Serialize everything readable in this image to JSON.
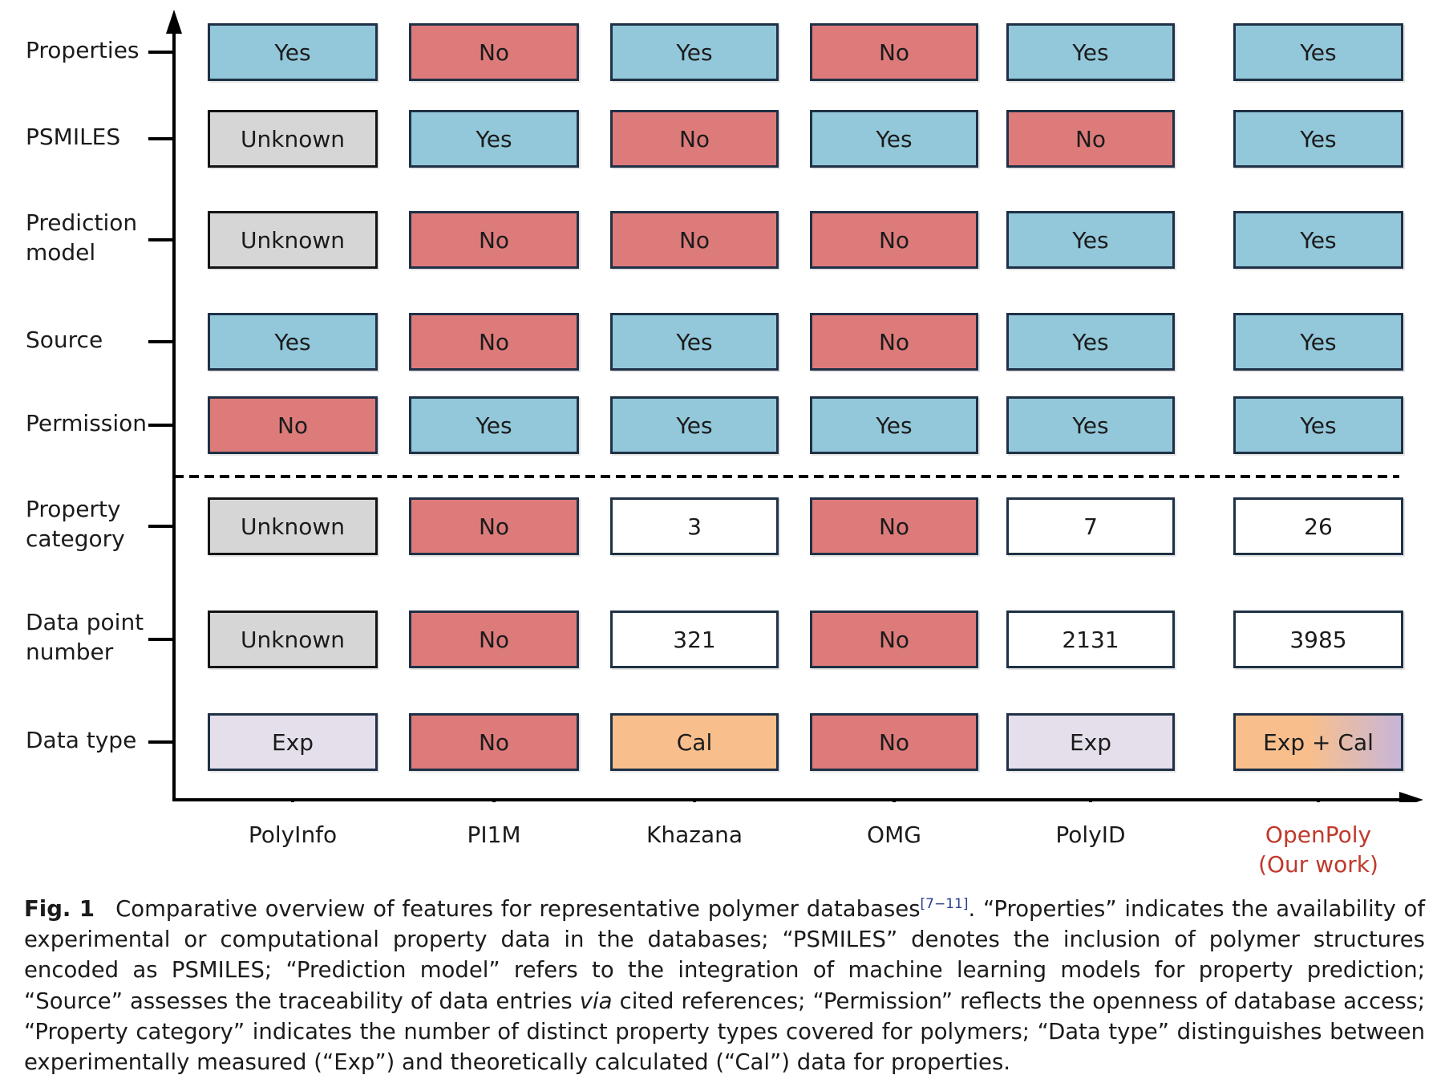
{
  "colors": {
    "yes": "#92c8da",
    "no": "#dd7b7b",
    "unknown": "#d6d6d6",
    "number": "#ffffff",
    "exp": "#e5dfeb",
    "cal": "#f8bf8d",
    "exp_cal_from": "#f8bf8d",
    "exp_cal_to": "#c7b6d8",
    "axis": "#000000",
    "highlight_label": "#c0392b"
  },
  "rows": [
    {
      "label": [
        "Properties"
      ],
      "cells": [
        {
          "text": "Yes",
          "kind": "yes"
        },
        {
          "text": "No",
          "kind": "no"
        },
        {
          "text": "Yes",
          "kind": "yes"
        },
        {
          "text": "No",
          "kind": "no"
        },
        {
          "text": "Yes",
          "kind": "yes"
        },
        {
          "text": "Yes",
          "kind": "yes"
        }
      ]
    },
    {
      "label": [
        "PSMILES"
      ],
      "cells": [
        {
          "text": "Unknown",
          "kind": "unknown"
        },
        {
          "text": "Yes",
          "kind": "yes"
        },
        {
          "text": "No",
          "kind": "no"
        },
        {
          "text": "Yes",
          "kind": "yes"
        },
        {
          "text": "No",
          "kind": "no"
        },
        {
          "text": "Yes",
          "kind": "yes"
        }
      ]
    },
    {
      "label": [
        "Prediction",
        "model"
      ],
      "cells": [
        {
          "text": "Unknown",
          "kind": "unknown"
        },
        {
          "text": "No",
          "kind": "no"
        },
        {
          "text": "No",
          "kind": "no"
        },
        {
          "text": "No",
          "kind": "no"
        },
        {
          "text": "Yes",
          "kind": "yes"
        },
        {
          "text": "Yes",
          "kind": "yes"
        }
      ]
    },
    {
      "label": [
        "Source"
      ],
      "cells": [
        {
          "text": "Yes",
          "kind": "yes"
        },
        {
          "text": "No",
          "kind": "no"
        },
        {
          "text": "Yes",
          "kind": "yes"
        },
        {
          "text": "No",
          "kind": "no"
        },
        {
          "text": "Yes",
          "kind": "yes"
        },
        {
          "text": "Yes",
          "kind": "yes"
        }
      ]
    },
    {
      "label": [
        "Permission"
      ],
      "cells": [
        {
          "text": "No",
          "kind": "no"
        },
        {
          "text": "Yes",
          "kind": "yes"
        },
        {
          "text": "Yes",
          "kind": "yes"
        },
        {
          "text": "Yes",
          "kind": "yes"
        },
        {
          "text": "Yes",
          "kind": "yes"
        },
        {
          "text": "Yes",
          "kind": "yes"
        }
      ]
    },
    {
      "label": [
        "Property",
        "category"
      ],
      "cells": [
        {
          "text": "Unknown",
          "kind": "unknown"
        },
        {
          "text": "No",
          "kind": "no"
        },
        {
          "text": "3",
          "kind": "number"
        },
        {
          "text": "No",
          "kind": "no"
        },
        {
          "text": "7",
          "kind": "number"
        },
        {
          "text": "26",
          "kind": "number"
        }
      ]
    },
    {
      "label": [
        "Data point",
        "number"
      ],
      "cells": [
        {
          "text": "Unknown",
          "kind": "unknown"
        },
        {
          "text": "No",
          "kind": "no"
        },
        {
          "text": "321",
          "kind": "number"
        },
        {
          "text": "No",
          "kind": "no"
        },
        {
          "text": "2131",
          "kind": "number"
        },
        {
          "text": "3985",
          "kind": "number"
        }
      ]
    },
    {
      "label": [
        "Data type"
      ],
      "cells": [
        {
          "text": "Exp",
          "kind": "exp"
        },
        {
          "text": "No",
          "kind": "no"
        },
        {
          "text": "Cal",
          "kind": "cal"
        },
        {
          "text": "No",
          "kind": "no"
        },
        {
          "text": "Exp",
          "kind": "exp"
        },
        {
          "text": "Exp + Cal",
          "kind": "exp_cal"
        }
      ]
    }
  ],
  "columns": [
    {
      "label": [
        "PolyInfo"
      ],
      "highlight": false
    },
    {
      "label": [
        "PI1M"
      ],
      "highlight": false
    },
    {
      "label": [
        "Khazana"
      ],
      "highlight": false
    },
    {
      "label": [
        "OMG"
      ],
      "highlight": false
    },
    {
      "label": [
        "PolyID"
      ],
      "highlight": false
    },
    {
      "label": [
        "OpenPoly",
        "(Our work)"
      ],
      "highlight": true
    }
  ],
  "caption": {
    "fig_label": "Fig. 1",
    "text_before_ref": "Comparative overview of features for representative polymer databases",
    "ref": "[7−11]",
    "text_after_ref": ". “Properties” indicates the availability of experimental or computational property data in the databases; “PSMILES” denotes the inclusion of polymer structures encoded as PSMILES; “Prediction model” refers to the integration of machine learning models for property prediction; “Source” assesses the traceability of data entries ",
    "via": "via",
    "text_end": " cited references; “Permission” reflects the openness of database access; “Property category” indicates the number of distinct property types covered for polymers; “Data type” distinguishes between experimentally measured (“Exp”) and theoretically calculated (“Cal”) data for properties."
  }
}
